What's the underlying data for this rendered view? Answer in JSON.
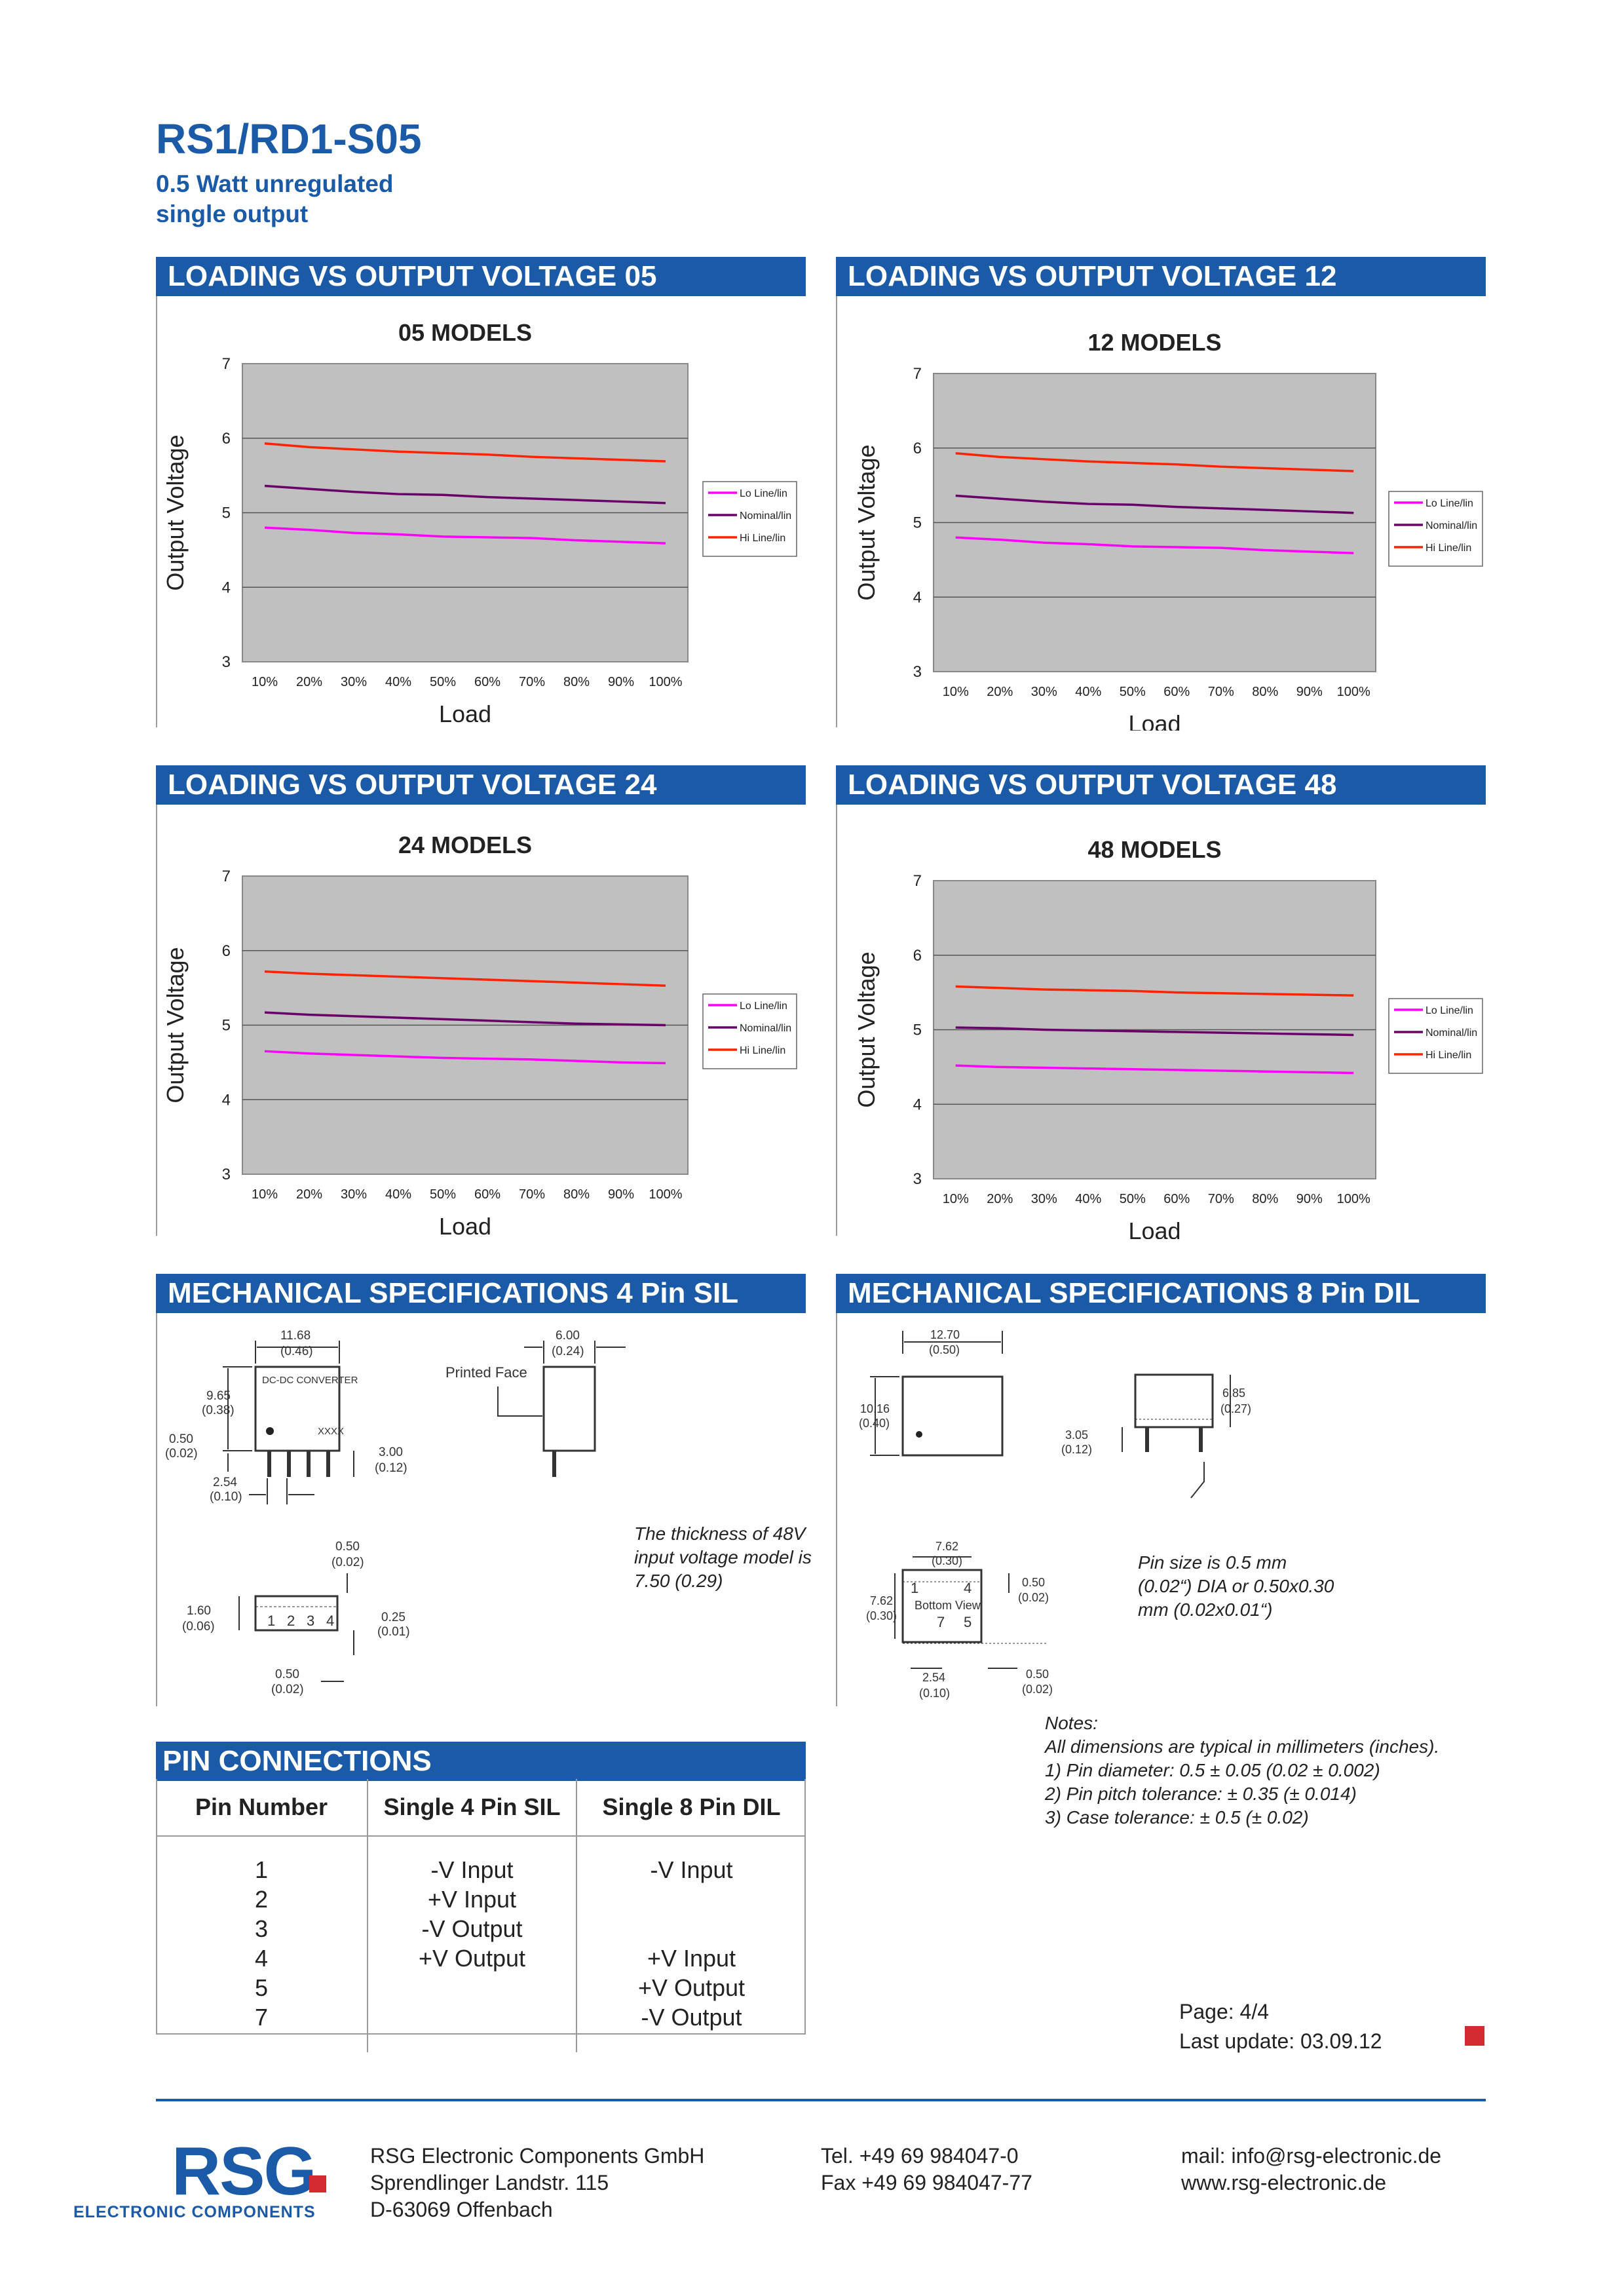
{
  "header": {
    "title": "RS1/RD1-S05",
    "subtitle_line1": "0.5 Watt unregulated",
    "subtitle_line2": "single output"
  },
  "sections": {
    "loading_05": "LOADING VS OUTPUT VOLTAGE 05",
    "loading_12": "LOADING VS OUTPUT VOLTAGE 12",
    "loading_24": "LOADING VS OUTPUT VOLTAGE 24",
    "loading_48": "LOADING VS OUTPUT VOLTAGE 48",
    "mech_sil": "MECHANICAL SPECIFICATIONS 4 Pin SIL",
    "mech_dil": "MECHANICAL SPECIFICATIONS 8 Pin DIL",
    "pin_connections": "PIN CONNECTIONS"
  },
  "chart_data": [
    {
      "type": "line",
      "title": "05 MODELS",
      "xlabel": "Load",
      "ylabel": "Output Voltage",
      "categories": [
        "10%",
        "20%",
        "30%",
        "40%",
        "50%",
        "60%",
        "70%",
        "80%",
        "90%",
        "100%"
      ],
      "ylim": [
        3,
        7
      ],
      "yticks": [
        "3",
        "4",
        "5",
        "6",
        "7"
      ],
      "grid": true,
      "legend": "right",
      "series": [
        {
          "name": "Lo Line/lin",
          "color": "#ff00ff",
          "values": [
            4.8,
            4.77,
            4.73,
            4.71,
            4.68,
            4.67,
            4.66,
            4.63,
            4.61,
            4.59
          ]
        },
        {
          "name": "Nominal/lin",
          "color": "#6a006a",
          "values": [
            5.36,
            5.32,
            5.28,
            5.25,
            5.24,
            5.21,
            5.19,
            5.17,
            5.15,
            5.13
          ]
        },
        {
          "name": "Hi Line/lin",
          "color": "#ff2200",
          "values": [
            5.93,
            5.88,
            5.85,
            5.82,
            5.8,
            5.78,
            5.75,
            5.73,
            5.71,
            5.69
          ]
        }
      ]
    },
    {
      "type": "line",
      "title": "12 MODELS",
      "xlabel": "Load",
      "ylabel": "Output Voltage",
      "categories": [
        "10%",
        "20%",
        "30%",
        "40%",
        "50%",
        "60%",
        "70%",
        "80%",
        "90%",
        "100%"
      ],
      "ylim": [
        3,
        7
      ],
      "yticks": [
        "3",
        "4",
        "5",
        "6",
        "7"
      ],
      "grid": true,
      "legend": "right",
      "series": [
        {
          "name": "Lo Line/lin",
          "color": "#ff00ff",
          "values": [
            4.8,
            4.77,
            4.73,
            4.71,
            4.68,
            4.67,
            4.66,
            4.63,
            4.61,
            4.59
          ]
        },
        {
          "name": "Nominal/lin",
          "color": "#6a006a",
          "values": [
            5.36,
            5.32,
            5.28,
            5.25,
            5.24,
            5.21,
            5.19,
            5.17,
            5.15,
            5.13
          ]
        },
        {
          "name": "Hi Line/lin",
          "color": "#ff2200",
          "values": [
            5.93,
            5.88,
            5.85,
            5.82,
            5.8,
            5.78,
            5.75,
            5.73,
            5.71,
            5.69
          ]
        }
      ]
    },
    {
      "type": "line",
      "title": "24 MODELS",
      "xlabel": "Load",
      "ylabel": "Output Voltage",
      "categories": [
        "10%",
        "20%",
        "30%",
        "40%",
        "50%",
        "60%",
        "70%",
        "80%",
        "90%",
        "100%"
      ],
      "ylim": [
        3,
        7
      ],
      "yticks": [
        "3",
        "4",
        "5",
        "6",
        "7"
      ],
      "grid": true,
      "legend": "right",
      "series": [
        {
          "name": "Lo Line/lin",
          "color": "#ff00ff",
          "values": [
            4.65,
            4.62,
            4.6,
            4.58,
            4.56,
            4.55,
            4.54,
            4.52,
            4.5,
            4.49
          ]
        },
        {
          "name": "Nominal/lin",
          "color": "#6a006a",
          "values": [
            5.17,
            5.14,
            5.12,
            5.1,
            5.08,
            5.06,
            5.04,
            5.02,
            5.01,
            5.0
          ]
        },
        {
          "name": "Hi Line/lin",
          "color": "#ff2200",
          "values": [
            5.72,
            5.69,
            5.67,
            5.65,
            5.63,
            5.61,
            5.59,
            5.57,
            5.55,
            5.53
          ]
        }
      ]
    },
    {
      "type": "line",
      "title": "48 MODELS",
      "xlabel": "Load",
      "ylabel": "Output Voltage",
      "categories": [
        "10%",
        "20%",
        "30%",
        "40%",
        "50%",
        "60%",
        "70%",
        "80%",
        "90%",
        "100%"
      ],
      "ylim": [
        3,
        7
      ],
      "yticks": [
        "3",
        "4",
        "5",
        "6",
        "7"
      ],
      "grid": true,
      "legend": "right",
      "series": [
        {
          "name": "Lo Line/lin",
          "color": "#ff00ff",
          "values": [
            4.52,
            4.5,
            4.49,
            4.48,
            4.47,
            4.46,
            4.45,
            4.44,
            4.43,
            4.42
          ]
        },
        {
          "name": "Nominal/lin",
          "color": "#6a006a",
          "values": [
            5.03,
            5.02,
            5.0,
            4.99,
            4.98,
            4.97,
            4.96,
            4.95,
            4.94,
            4.93
          ]
        },
        {
          "name": "Hi Line/lin",
          "color": "#ff2200",
          "values": [
            5.58,
            5.56,
            5.54,
            5.53,
            5.52,
            5.5,
            5.49,
            5.48,
            5.47,
            5.46
          ]
        }
      ]
    }
  ],
  "mech_sil": {
    "dim_width": "11.68",
    "dim_width_in": "(0.46)",
    "dim_depth": "6.00",
    "dim_depth_in": "(0.24)",
    "printed_face": "Printed Face",
    "converter_label": "DC-DC CONVERTER",
    "marking": "XXXX",
    "dim_height": "9.65",
    "dim_height_in": "(0.38)",
    "dim_standoff": "0.50",
    "dim_standoff_in": "(0.02)",
    "dim_pin_len": "3.00",
    "dim_pin_len_in": "(0.12)",
    "dim_pitch": "2.54",
    "dim_pitch_in": "(0.10)",
    "dim_top_pin": "0.50",
    "dim_top_pin_in": "(0.02)",
    "dim_side": "1.60",
    "dim_side_in": "(0.06)",
    "dim_edge": "0.25",
    "dim_edge_in": "(0.01)",
    "pin_numbers": [
      "1",
      "2",
      "3",
      "4"
    ],
    "dim_bottom": "0.50",
    "dim_bottom_in": "(0.02)",
    "note": "The thickness of 48V input voltage model is 7.50 (0.29)"
  },
  "mech_dil": {
    "dim_length": "12.70",
    "dim_length_in": "(0.50)",
    "dim_width": "10.16",
    "dim_width_in": "(0.40)",
    "dim_height": "6.85",
    "dim_height_in": "(0.27)",
    "dim_pin": "3.05",
    "dim_pin_in": "(0.12)",
    "dim_row": "7.62",
    "dim_row_in": "(0.30)",
    "dim_side": "7.62",
    "dim_side_in": "(0.30)",
    "dim_corner": "0.50",
    "dim_corner_in": "(0.02)",
    "dim_pitch": "2.54",
    "dim_pitch_in": "(0.10)",
    "dim_bottom": "0.50",
    "dim_bottom_in": "(0.02)",
    "bottom_view": "Bottom View",
    "pins_top": [
      "1",
      "4"
    ],
    "pins_bottom": [
      "7",
      "5"
    ],
    "note": "Pin size is 0.5 mm (0.02“) DIA or 0.50x0.30 mm (0.02x0.01“)"
  },
  "pin_table": {
    "headers": [
      "Pin Number",
      "Single 4 Pin SIL",
      "Single 8 Pin DIL"
    ],
    "pin_numbers": "1\n2\n3\n4\n5\n7",
    "sil": "-V Input\n+V Input\n-V Output\n+V Output",
    "dil": "-V Input\n\n\n+V Input\n+V Output\n-V Output"
  },
  "notes": {
    "heading": "Notes:",
    "line0": "All dimensions are typical in millimeters (inches).",
    "line1": "1)  Pin diameter: 0.5 ± 0.05 (0.02 ± 0.002)",
    "line2": "2)  Pin pitch tolerance: ± 0.35 (± 0.014)",
    "line3": "3)  Case tolerance: ± 0.5 (± 0.02)"
  },
  "page_info": {
    "page": "Page: 4/4",
    "updated": "Last update: 03.09.12"
  },
  "footer": {
    "logo": "RSG",
    "logo_sub": "ELECTRONIC COMPONENTS",
    "company": "RSG Electronic Components GmbH",
    "street": "Sprendlinger Landstr. 115",
    "city": "D-63069 Offenbach",
    "tel": "Tel. +49 69 984047-0",
    "fax": "Fax +49 69 984047-77",
    "mail": "mail: info@rsg-electronic.de",
    "web": "www.rsg-electronic.de"
  }
}
